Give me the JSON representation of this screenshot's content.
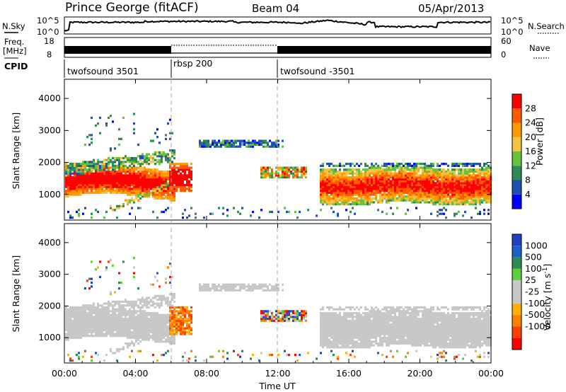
{
  "header": {
    "station": "Prince George (fitACF)",
    "beam": "Beam 04",
    "date": "05/Apr/2013"
  },
  "top_panels": {
    "nsky_label": "N.Sky",
    "nsky_ticks": [
      "10^5",
      "10^0"
    ],
    "nsearch_label": "N.Search",
    "nsearch_ticks": [
      "10^5",
      "10^0"
    ],
    "freq_label_1": "Freq.",
    "freq_label_2": "[MHz]",
    "freq_ticks": [
      "18",
      "8"
    ],
    "nave_label": "Nave",
    "nave_ticks": [
      "60",
      "0"
    ],
    "cpid_label": "CPID",
    "cpid_segments": [
      "twofsound 3501",
      "rbsp 200",
      "twofsound -3501"
    ]
  },
  "colors": {
    "power_scale": [
      "#0000ff",
      "#1e4fb4",
      "#2e8b57",
      "#66c23a",
      "#f5c242",
      "#ff9a00",
      "#ff5a00",
      "#ff0000"
    ],
    "velocity_scale": [
      "#2040c0",
      "#1e60c8",
      "#2e8b57",
      "#5fcf3a",
      "#c8c8c8",
      "#c8c8c8",
      "#ffb000",
      "#ff8000",
      "#ff4000",
      "#ff0000"
    ],
    "ground_scatter": "#c8c8c8"
  },
  "chart_data": [
    {
      "type": "heatmap",
      "panel": "power",
      "ylabel": "Slant Range [km]",
      "yticks": [
        "1000",
        "2000",
        "3000",
        "4000"
      ],
      "ylim": [
        200,
        4600
      ],
      "colorbar_label": "Power [dB]",
      "colorbar_ticks": [
        "4",
        "8",
        "12",
        "16",
        "20",
        "24",
        "28"
      ]
    },
    {
      "type": "heatmap",
      "panel": "velocity",
      "ylabel": "Slant Range [km]",
      "yticks": [
        "1000",
        "2000",
        "3000",
        "4000"
      ],
      "ylim": [
        200,
        4600
      ],
      "xlabel": "Time UT",
      "xticks": [
        "00:00",
        "04:00",
        "08:00",
        "12:00",
        "16:00",
        "20:00",
        "00:00"
      ],
      "colorbar_label_main": "Velocity [m s",
      "colorbar_label_sup": "-1",
      "colorbar_label_end": "]",
      "colorbar_ticks": [
        "1000",
        "500",
        "100",
        "25",
        "-25",
        "-100",
        "-500",
        "-1000"
      ]
    }
  ]
}
